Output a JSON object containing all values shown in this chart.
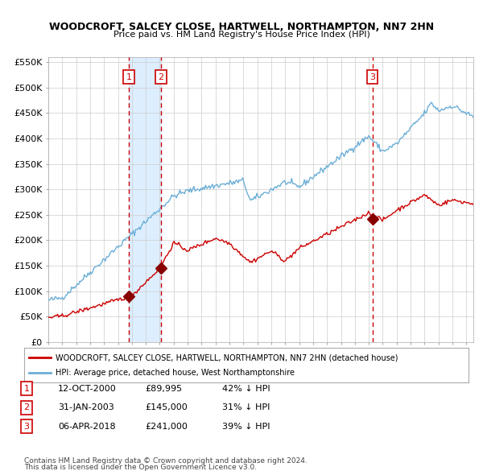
{
  "title": "WOODCROFT, SALCEY CLOSE, HARTWELL, NORTHAMPTON, NN7 2HN",
  "subtitle": "Price paid vs. HM Land Registry's House Price Index (HPI)",
  "hpi_color": "#6baed6",
  "price_color": "#cc0000",
  "shade_color": "#ddeeff",
  "grid_color": "#cccccc",
  "bg_color": "#ffffff",
  "plot_bg": "#ffffff",
  "ylim": [
    0,
    560000
  ],
  "yticks": [
    0,
    50000,
    100000,
    150000,
    200000,
    250000,
    300000,
    350000,
    400000,
    450000,
    500000,
    550000
  ],
  "ytick_labels": [
    "£0",
    "£50K",
    "£100K",
    "£150K",
    "£200K",
    "£250K",
    "£300K",
    "£350K",
    "£400K",
    "£450K",
    "£500K",
    "£550K"
  ],
  "xmin": 1995.0,
  "xmax": 2025.5,
  "sale_dates": [
    2000.78,
    2003.08,
    2018.26
  ],
  "sale_prices": [
    89995,
    145000,
    241000
  ],
  "sale_labels": [
    "1",
    "2",
    "3"
  ],
  "vline_color": "#cc0000",
  "shade_between": [
    [
      2000.78,
      2003.08
    ]
  ],
  "legend_line1": "WOODCROFT, SALCEY CLOSE, HARTWELL, NORTHAMPTON, NN7 2HN (detached house)",
  "legend_line2": "HPI: Average price, detached house, West Northamptonshire",
  "table_rows": [
    {
      "num": "1",
      "date": "12-OCT-2000",
      "price": "£89,995",
      "hpi": "42% ↓ HPI"
    },
    {
      "num": "2",
      "date": "31-JAN-2003",
      "price": "£145,000",
      "hpi": "31% ↓ HPI"
    },
    {
      "num": "3",
      "date": "06-APR-2018",
      "price": "£241,000",
      "hpi": "39% ↓ HPI"
    }
  ],
  "footnote1": "Contains HM Land Registry data © Crown copyright and database right 2024.",
  "footnote2": "This data is licensed under the Open Government Licence v3.0."
}
